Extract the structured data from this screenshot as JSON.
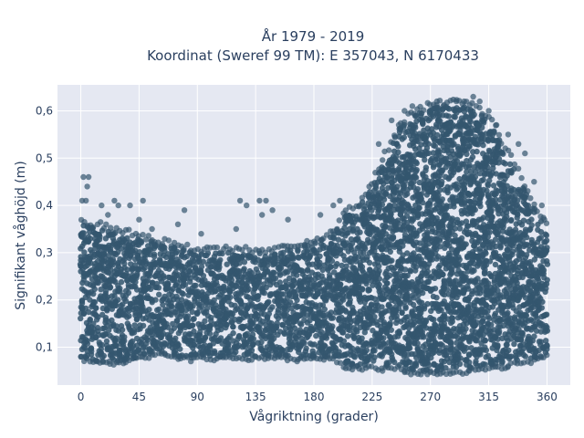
{
  "chart_data": {
    "type": "scatter",
    "title_line1": "År 1979 - 2019",
    "title_line2": "Koordinat (Sweref 99 TM): E 357043, N 6170433",
    "xlabel": "Vågriktning (grader)",
    "ylabel": "Signifikant våghöjd (m)",
    "xlim": [
      -18,
      378
    ],
    "ylim": [
      0.02,
      0.655
    ],
    "xticks": [
      0,
      45,
      90,
      135,
      180,
      225,
      270,
      315,
      360
    ],
    "xtick_labels": [
      "0",
      "45",
      "90",
      "135",
      "180",
      "225",
      "270",
      "315",
      "360"
    ],
    "yticks": [
      0.1,
      0.2,
      0.3,
      0.4,
      0.5,
      0.6
    ],
    "ytick_labels": [
      "0,1",
      "0,2",
      "0,3",
      "0,4",
      "0,5",
      "0,6"
    ],
    "marker_color": "#34566e",
    "plot_background": "#e5e8f2",
    "envelope": {
      "direction": [
        0,
        15,
        30,
        45,
        60,
        75,
        90,
        105,
        120,
        135,
        150,
        165,
        180,
        195,
        205,
        215,
        225,
        235,
        245,
        255,
        265,
        275,
        285,
        295,
        305,
        315,
        325,
        335,
        345,
        355,
        360
      ],
      "min_height": [
        0.08,
        0.07,
        0.07,
        0.08,
        0.09,
        0.08,
        0.08,
        0.08,
        0.08,
        0.08,
        0.08,
        0.08,
        0.08,
        0.08,
        0.06,
        0.06,
        0.06,
        0.06,
        0.06,
        0.05,
        0.05,
        0.05,
        0.05,
        0.05,
        0.06,
        0.06,
        0.06,
        0.07,
        0.07,
        0.08,
        0.09
      ],
      "max_height": [
        0.36,
        0.35,
        0.34,
        0.33,
        0.32,
        0.31,
        0.3,
        0.3,
        0.3,
        0.3,
        0.3,
        0.31,
        0.32,
        0.34,
        0.38,
        0.4,
        0.44,
        0.5,
        0.56,
        0.59,
        0.6,
        0.61,
        0.61,
        0.61,
        0.6,
        0.58,
        0.53,
        0.48,
        0.42,
        0.37,
        0.35
      ]
    },
    "outliers": [
      {
        "x": 2,
        "y": 0.46
      },
      {
        "x": 5,
        "y": 0.44
      },
      {
        "x": 6,
        "y": 0.46
      },
      {
        "x": 1,
        "y": 0.41
      },
      {
        "x": 4,
        "y": 0.41
      },
      {
        "x": 16,
        "y": 0.4
      },
      {
        "x": 21,
        "y": 0.38
      },
      {
        "x": 26,
        "y": 0.41
      },
      {
        "x": 29,
        "y": 0.4
      },
      {
        "x": 38,
        "y": 0.4
      },
      {
        "x": 48,
        "y": 0.41
      },
      {
        "x": 45,
        "y": 0.37
      },
      {
        "x": 55,
        "y": 0.35
      },
      {
        "x": 75,
        "y": 0.36
      },
      {
        "x": 80,
        "y": 0.39
      },
      {
        "x": 93,
        "y": 0.34
      },
      {
        "x": 120,
        "y": 0.35
      },
      {
        "x": 123,
        "y": 0.41
      },
      {
        "x": 128,
        "y": 0.4
      },
      {
        "x": 138,
        "y": 0.41
      },
      {
        "x": 143,
        "y": 0.41
      },
      {
        "x": 140,
        "y": 0.38
      },
      {
        "x": 148,
        "y": 0.39
      },
      {
        "x": 160,
        "y": 0.37
      },
      {
        "x": 185,
        "y": 0.38
      },
      {
        "x": 195,
        "y": 0.4
      },
      {
        "x": 200,
        "y": 0.41
      },
      {
        "x": 230,
        "y": 0.53
      },
      {
        "x": 240,
        "y": 0.58
      },
      {
        "x": 250,
        "y": 0.6
      },
      {
        "x": 256,
        "y": 0.61
      },
      {
        "x": 275,
        "y": 0.62
      },
      {
        "x": 280,
        "y": 0.61
      },
      {
        "x": 290,
        "y": 0.62
      },
      {
        "x": 296,
        "y": 0.62
      },
      {
        "x": 303,
        "y": 0.63
      },
      {
        "x": 308,
        "y": 0.62
      },
      {
        "x": 315,
        "y": 0.6
      },
      {
        "x": 321,
        "y": 0.57
      },
      {
        "x": 330,
        "y": 0.55
      },
      {
        "x": 338,
        "y": 0.53
      },
      {
        "x": 343,
        "y": 0.51
      },
      {
        "x": 350,
        "y": 0.45
      },
      {
        "x": 356,
        "y": 0.4
      },
      {
        "x": 358,
        "y": 0.37
      },
      {
        "x": 12,
        "y": 0.07
      },
      {
        "x": 22,
        "y": 0.07
      },
      {
        "x": 85,
        "y": 0.07
      },
      {
        "x": 167,
        "y": 0.07
      },
      {
        "x": 210,
        "y": 0.06
      },
      {
        "x": 233,
        "y": 0.05
      },
      {
        "x": 250,
        "y": 0.05
      },
      {
        "x": 262,
        "y": 0.05
      },
      {
        "x": 270,
        "y": 0.05
      },
      {
        "x": 285,
        "y": 0.05
      },
      {
        "x": 300,
        "y": 0.05
      },
      {
        "x": 330,
        "y": 0.06
      }
    ]
  }
}
